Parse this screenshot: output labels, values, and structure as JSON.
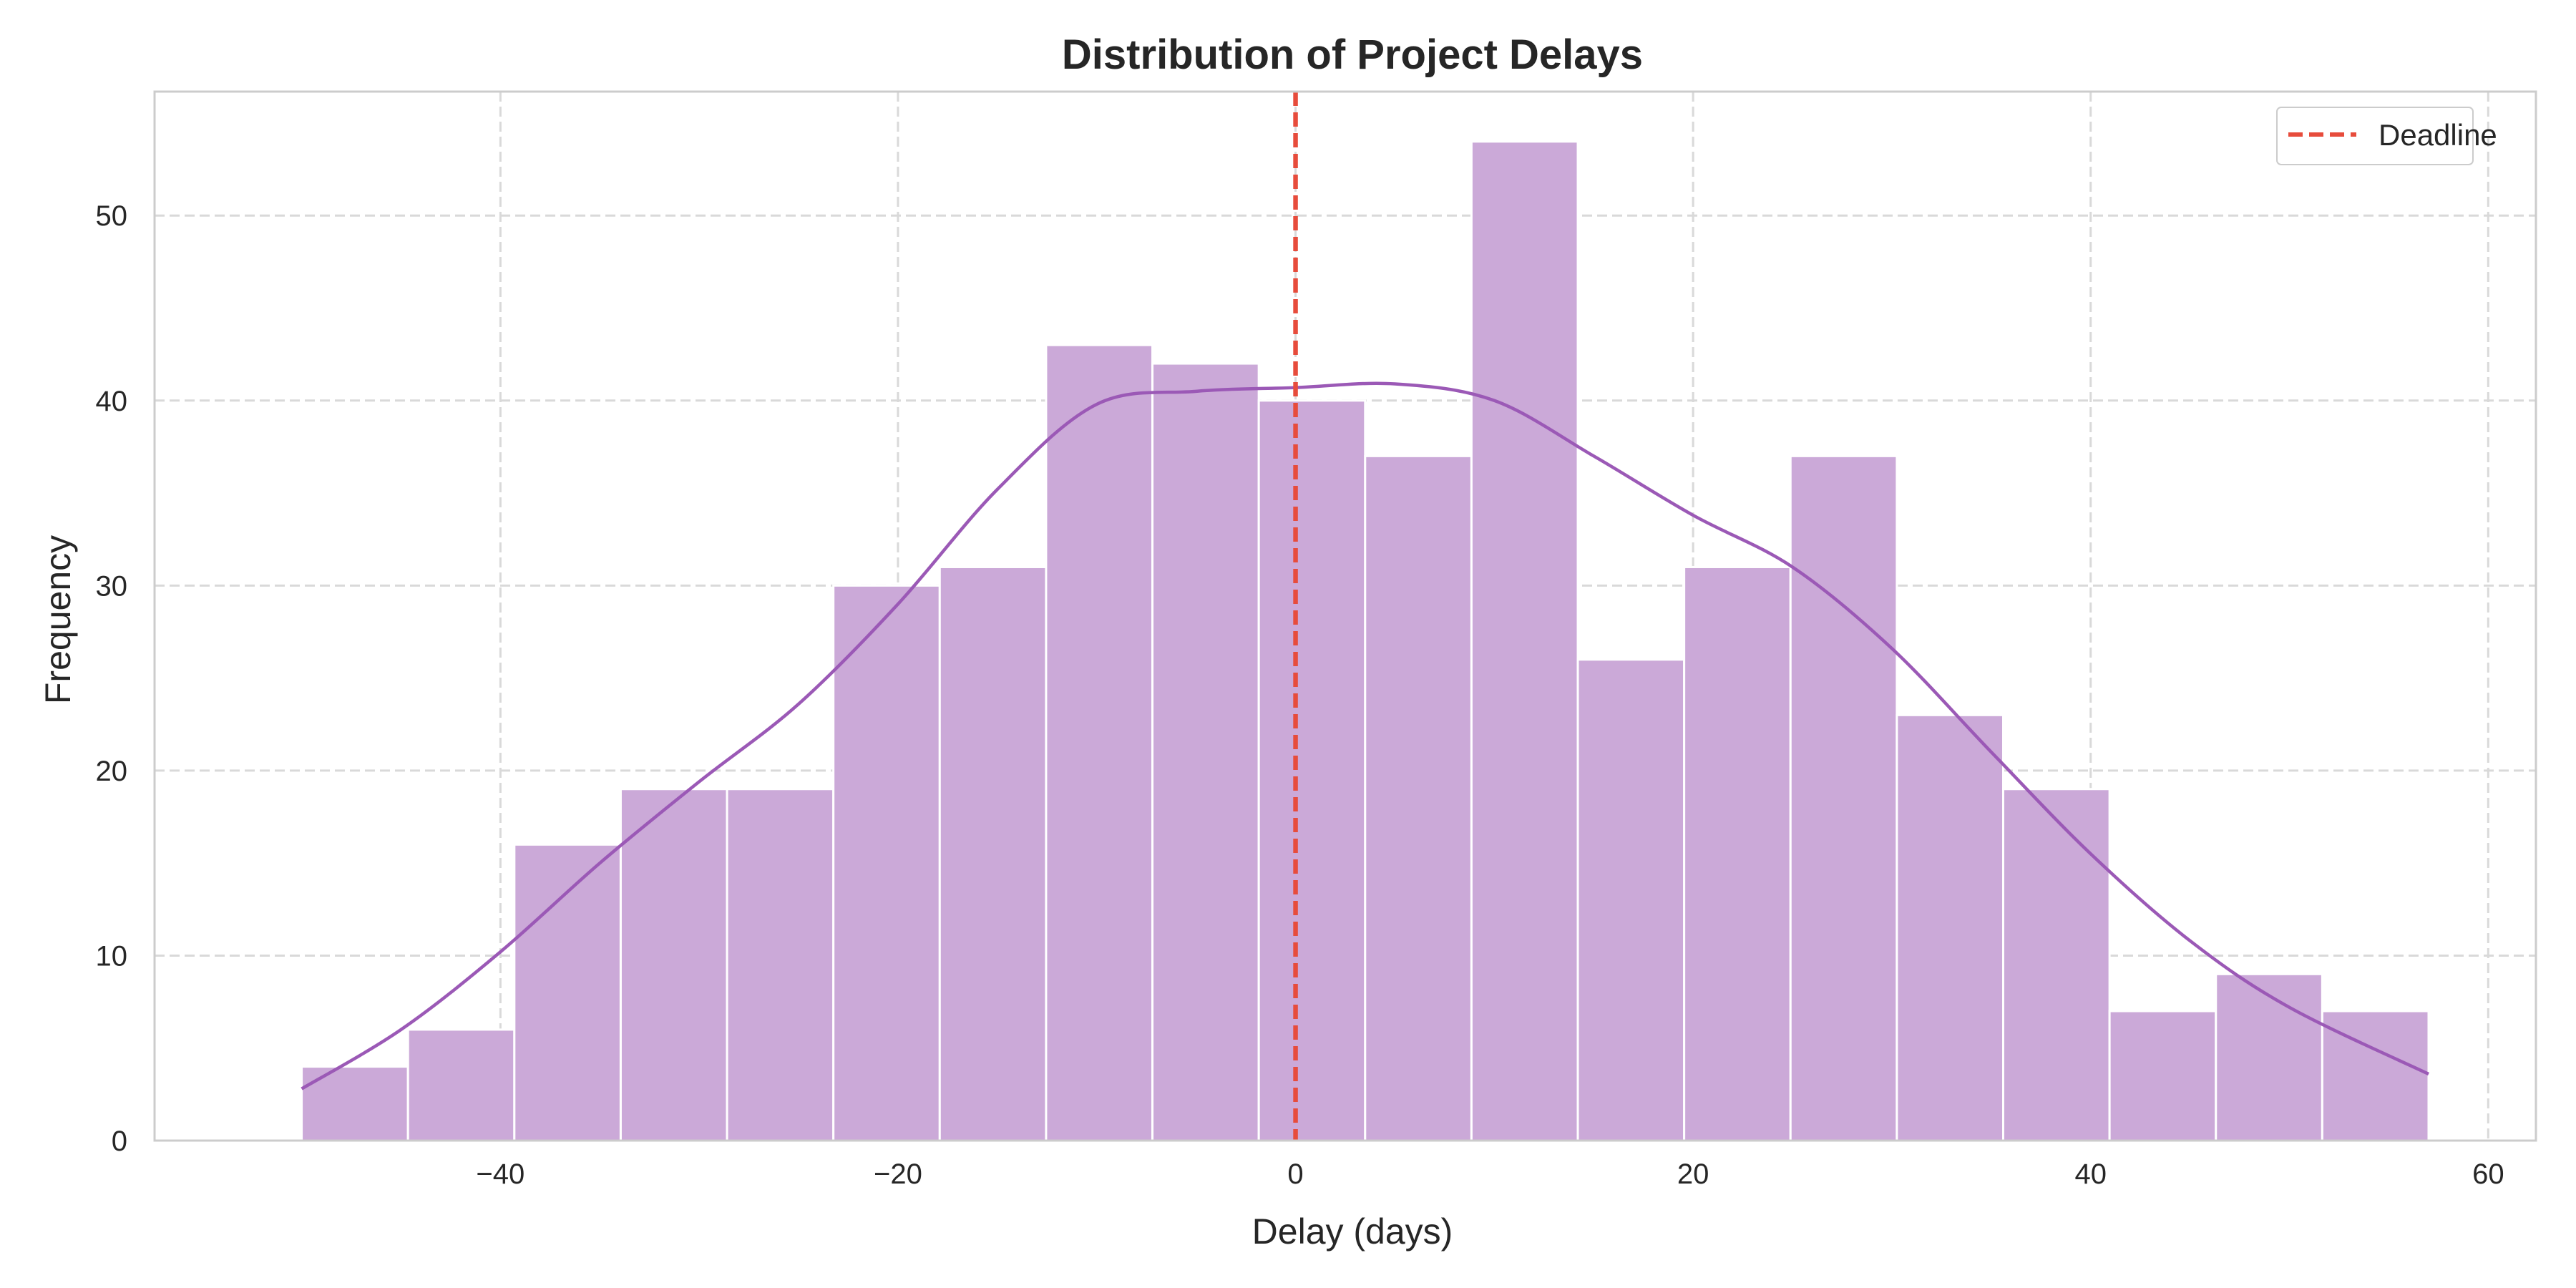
{
  "chart_data": {
    "type": "bar",
    "title": "Distribution of Project Delays",
    "xlabel": "Delay (days)",
    "ylabel": "Frequency",
    "xlim": [
      -57.4,
      62.4
    ],
    "ylim": [
      0,
      56.7
    ],
    "xticks": [
      -40,
      -20,
      0,
      20,
      40,
      60
    ],
    "xtick_labels": [
      "−40",
      "−20",
      "0",
      "20",
      "40",
      "60"
    ],
    "yticks": [
      0,
      10,
      20,
      30,
      40,
      50
    ],
    "ytick_labels": [
      "0",
      "10",
      "20",
      "30",
      "40",
      "50"
    ],
    "grid": true,
    "bin_edges": [
      -50.0,
      -44.65,
      -39.3,
      -33.95,
      -28.6,
      -23.25,
      -17.9,
      -12.55,
      -7.2,
      -1.85,
      3.5,
      8.85,
      14.2,
      19.55,
      24.9,
      30.25,
      35.6,
      40.95,
      46.3,
      51.65,
      57.0
    ],
    "counts": [
      4,
      6,
      16,
      19,
      19,
      30,
      31,
      43,
      42,
      40,
      37,
      54,
      26,
      31,
      37,
      23,
      19,
      7,
      9,
      7
    ],
    "kde_x": [
      -50,
      -45,
      -40,
      -35,
      -30,
      -25,
      -20,
      -15,
      -10,
      -5,
      0,
      5,
      10,
      15,
      20,
      25,
      30,
      35,
      40,
      45,
      50,
      57
    ],
    "kde_y": [
      2.8,
      6.0,
      10.2,
      15.0,
      19.4,
      23.6,
      29.0,
      35.2,
      39.8,
      40.5,
      40.7,
      40.9,
      40.0,
      37.0,
      33.8,
      31.0,
      26.6,
      21.0,
      15.5,
      10.8,
      7.2,
      3.6
    ],
    "deadline_x": 0,
    "legend": {
      "position": "top-right",
      "entries": [
        "Deadline"
      ]
    },
    "colors": {
      "bar_fill": "#cba9d8",
      "bar_edge": "#ffffff",
      "kde_line": "#9b59b6",
      "deadline": "#e74c3c",
      "grid": "#d9d9d9",
      "spine": "#cccccc",
      "text": "#262626"
    }
  }
}
